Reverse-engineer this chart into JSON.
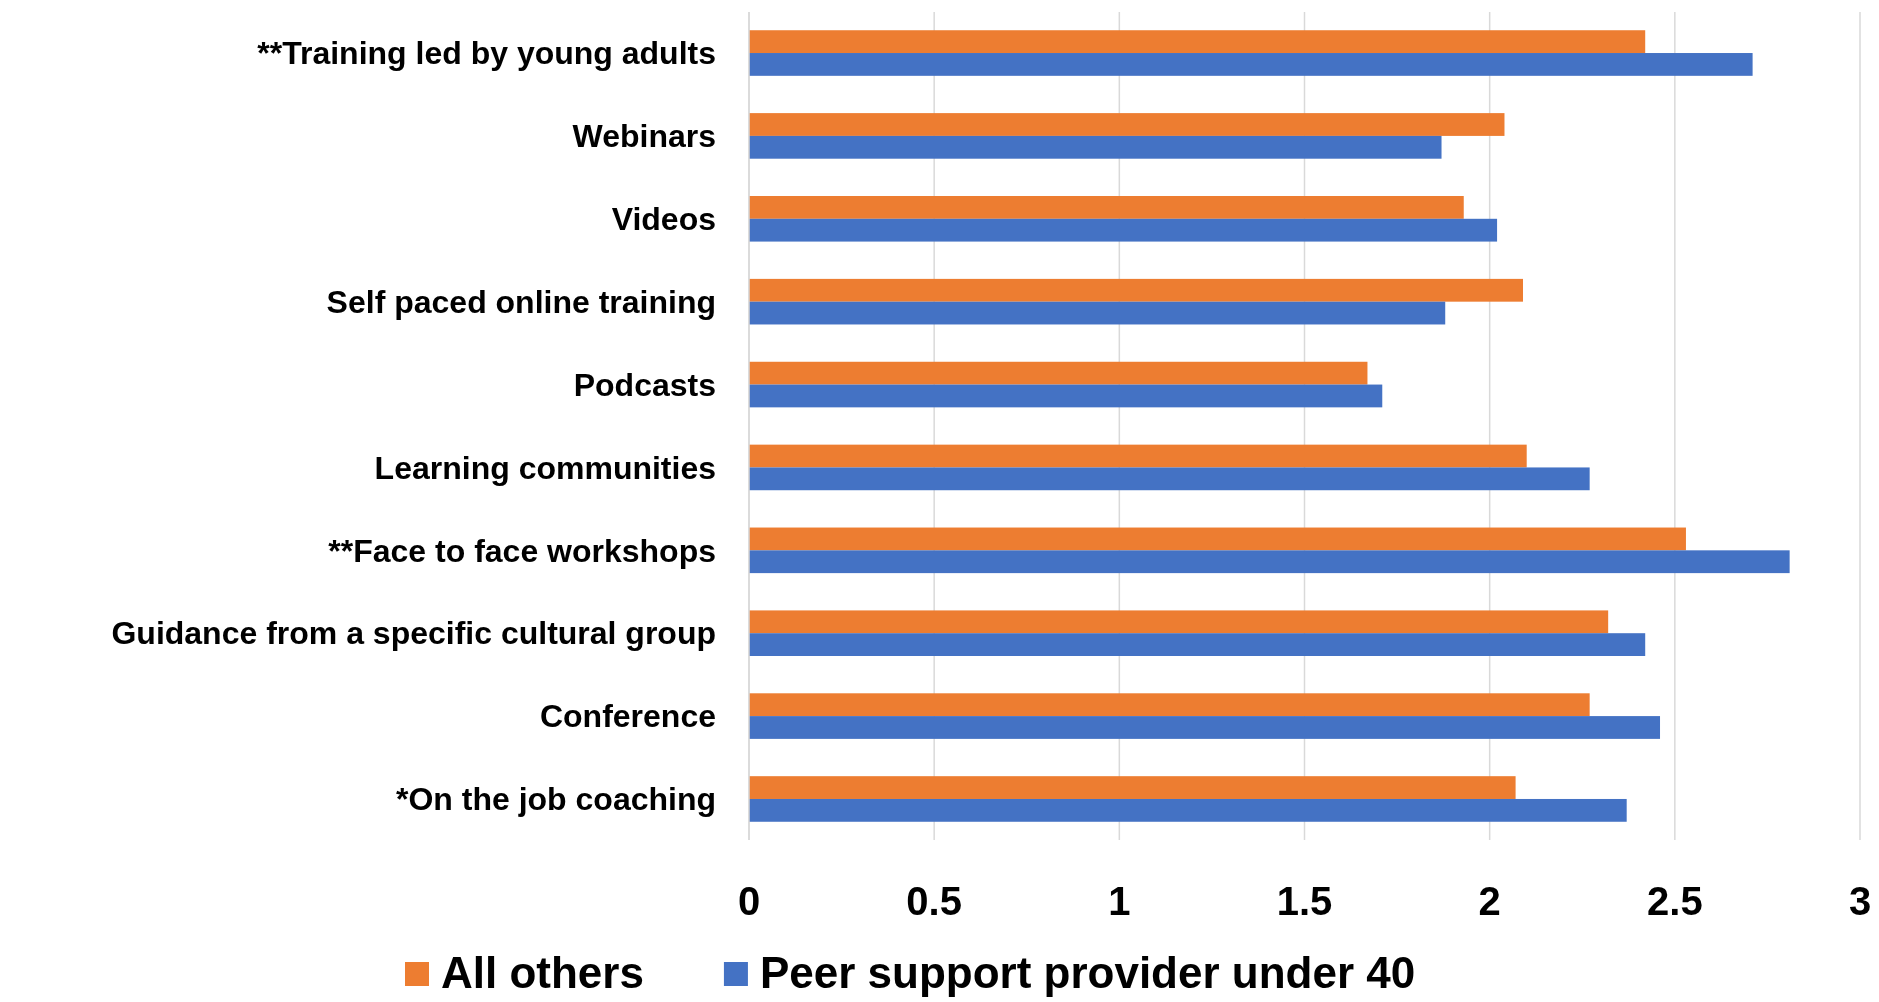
{
  "chart_data": {
    "type": "bar",
    "orientation": "horizontal",
    "categories": [
      "**Training led by young adults",
      "Webinars",
      "Videos",
      "Self paced online training",
      "Podcasts",
      "Learning communities",
      "**Face to face workshops",
      "Guidance from a specific cultural group",
      "Conference",
      "*On the job coaching"
    ],
    "series": [
      {
        "name": "All others",
        "color": "#ed7d31",
        "values": [
          2.42,
          2.04,
          1.93,
          2.09,
          1.67,
          2.1,
          2.53,
          2.32,
          2.27,
          2.07
        ]
      },
      {
        "name": "Peer support provider under 40",
        "color": "#4472c4",
        "values": [
          2.71,
          1.87,
          2.02,
          1.88,
          1.71,
          2.27,
          2.81,
          2.42,
          2.46,
          2.37
        ]
      }
    ],
    "xlim": [
      0,
      3
    ],
    "xticks": [
      0,
      0.5,
      1,
      1.5,
      2,
      2.5,
      3
    ],
    "grid": "x",
    "legend": "bottom"
  }
}
